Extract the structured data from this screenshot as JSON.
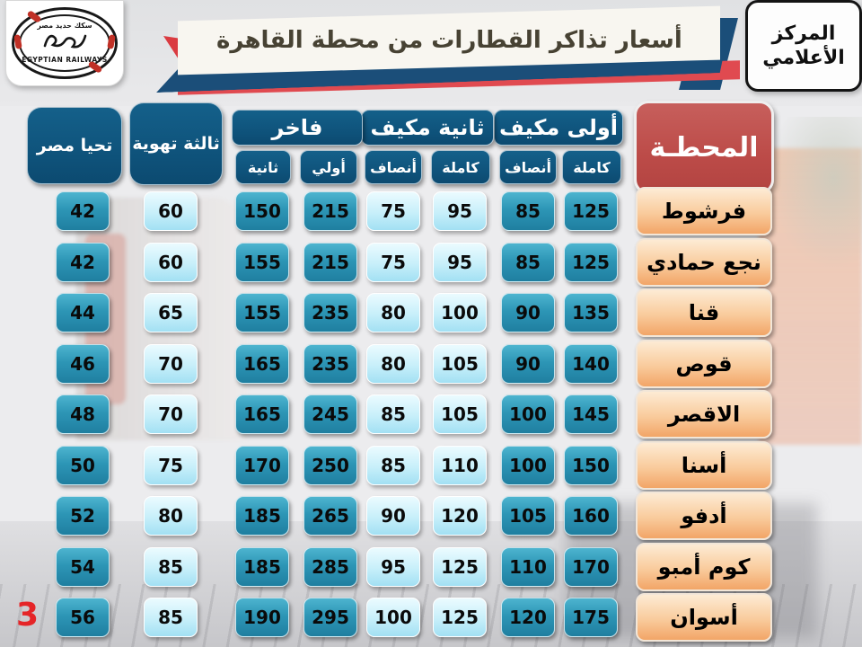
{
  "page_number": "3",
  "logo": {
    "arabic": "سكك حديد مصر",
    "english": "EGYPTIAN RAILWAYS"
  },
  "banner": {
    "title": "أسعار تذاكر القطارات من محطة القاهرة"
  },
  "media_center": {
    "line1": "المركز",
    "line2": "الأعلامي"
  },
  "table": {
    "station_header": "المحطـة",
    "groups": [
      {
        "label": "فاخر",
        "subs": [
          {
            "label": "ثانية"
          },
          {
            "label": "أولي"
          }
        ]
      },
      {
        "label": "ثانية مكيف",
        "subs": [
          {
            "label": "أنصاف"
          },
          {
            "label": "كاملة"
          }
        ]
      },
      {
        "label": "أولى مكيف",
        "subs": [
          {
            "label": "أنصاف"
          },
          {
            "label": "كاملة"
          }
        ]
      }
    ],
    "tall_columns": [
      {
        "label": "تحيا مصر"
      },
      {
        "label": "ثالثة تهوية"
      }
    ],
    "columns_left_to_right": [
      "تحيا مصر",
      "ثالثة تهوية",
      "فاخر ثانية",
      "فاخر أولي",
      "ثانية مكيف أنصاف",
      "ثانية مكيف كاملة",
      "أولى مكيف أنصاف",
      "أولى مكيف كاملة"
    ],
    "column_styles": [
      "teal",
      "light",
      "teal",
      "teal",
      "light",
      "light",
      "teal",
      "teal"
    ],
    "rows": [
      {
        "station": "فرشوط",
        "values": [
          "42",
          "60",
          "150",
          "215",
          "75",
          "95",
          "85",
          "125"
        ]
      },
      {
        "station": "نجع حمادي",
        "values": [
          "42",
          "60",
          "155",
          "215",
          "75",
          "95",
          "85",
          "125"
        ]
      },
      {
        "station": "قنا",
        "values": [
          "44",
          "65",
          "155",
          "235",
          "80",
          "100",
          "90",
          "135"
        ]
      },
      {
        "station": "قوص",
        "values": [
          "46",
          "70",
          "165",
          "235",
          "80",
          "105",
          "90",
          "140"
        ]
      },
      {
        "station": "الاقصر",
        "values": [
          "48",
          "70",
          "165",
          "245",
          "85",
          "105",
          "100",
          "145"
        ]
      },
      {
        "station": "أسنا",
        "values": [
          "50",
          "75",
          "170",
          "250",
          "85",
          "110",
          "100",
          "150"
        ]
      },
      {
        "station": "أدفو",
        "values": [
          "52",
          "80",
          "185",
          "265",
          "90",
          "120",
          "105",
          "160"
        ]
      },
      {
        "station": "كوم أمبو",
        "values": [
          "54",
          "85",
          "185",
          "285",
          "95",
          "125",
          "110",
          "170"
        ]
      },
      {
        "station": "أسوان",
        "values": [
          "56",
          "85",
          "190",
          "295",
          "100",
          "125",
          "120",
          "175"
        ]
      }
    ]
  },
  "colors": {
    "header_blue": "#0E5179",
    "station_red": "#BC4B48",
    "cell_teal": "#2D96B6",
    "cell_light": "#C7EFFA",
    "station_orange": "#F2A567",
    "banner_navy": "#1B4E79",
    "banner_red": "#E04A50",
    "page_number_red": "#E52528"
  }
}
